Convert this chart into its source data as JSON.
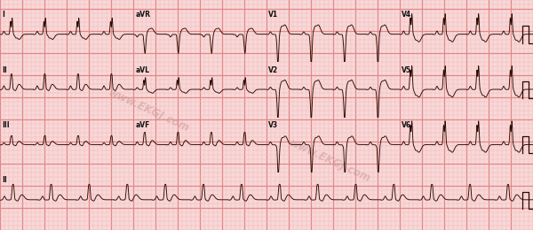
{
  "bg_color": "#f9d8d8",
  "grid_minor_color": "#f0b8b8",
  "grid_major_color": "#e08888",
  "ecg_color": "#2a0a00",
  "ecg_linewidth": 0.65,
  "fig_width": 6.0,
  "fig_height": 2.6,
  "watermark_text": "www.EKGJ.com",
  "watermark_color": "#cc9999",
  "lead_label_fontsize": 5.5,
  "lead_label_color": "#111111"
}
